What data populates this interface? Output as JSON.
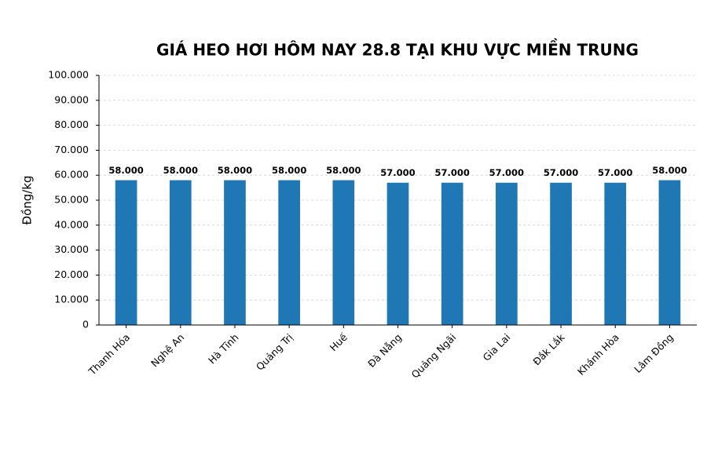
{
  "chart_data": {
    "type": "bar",
    "title": "GIÁ HEO HƠI HÔM NAY 28.8 TẠI KHU VỰC MIỀN TRUNG",
    "y_label": "Đồng/kg",
    "categories": [
      "Thanh Hóa",
      "Nghệ An",
      "Hà Tĩnh",
      "Quảng Trị",
      "Huế",
      "Đà Nẵng",
      "Quảng Ngãi",
      "Gia Lai",
      "Đắk Lắk",
      "Khánh Hòa",
      "Lâm Đồng"
    ],
    "values": [
      58000,
      58000,
      58000,
      58000,
      58000,
      57000,
      57000,
      57000,
      57000,
      57000,
      58000
    ],
    "value_labels": [
      "58.000",
      "58.000",
      "58.000",
      "58.000",
      "58.000",
      "57.000",
      "57.000",
      "57.000",
      "57.000",
      "57.000",
      "58.000"
    ],
    "color": "#1f77b4",
    "ylim": [
      0,
      100000
    ],
    "yticks": [
      0,
      {
        "value": 10000,
        "label": "10.000"
      },
      {
        "value": 20000,
        "label": "20.000"
      },
      {
        "value": 30000,
        "label": "30.000"
      },
      {
        "value": 40000,
        "label": "40.000"
      },
      {
        "value": 50000,
        "label": "50.000"
      },
      {
        "value": 60000,
        "label": "60.000"
      },
      {
        "value": 70000,
        "label": "70.000"
      },
      {
        "value": 80000,
        "label": "80.000"
      },
      {
        "value": 90000,
        "label": "90.000"
      },
      {
        "value": 100000,
        "label": "100.000"
      }
    ],
    "grid": true
  }
}
